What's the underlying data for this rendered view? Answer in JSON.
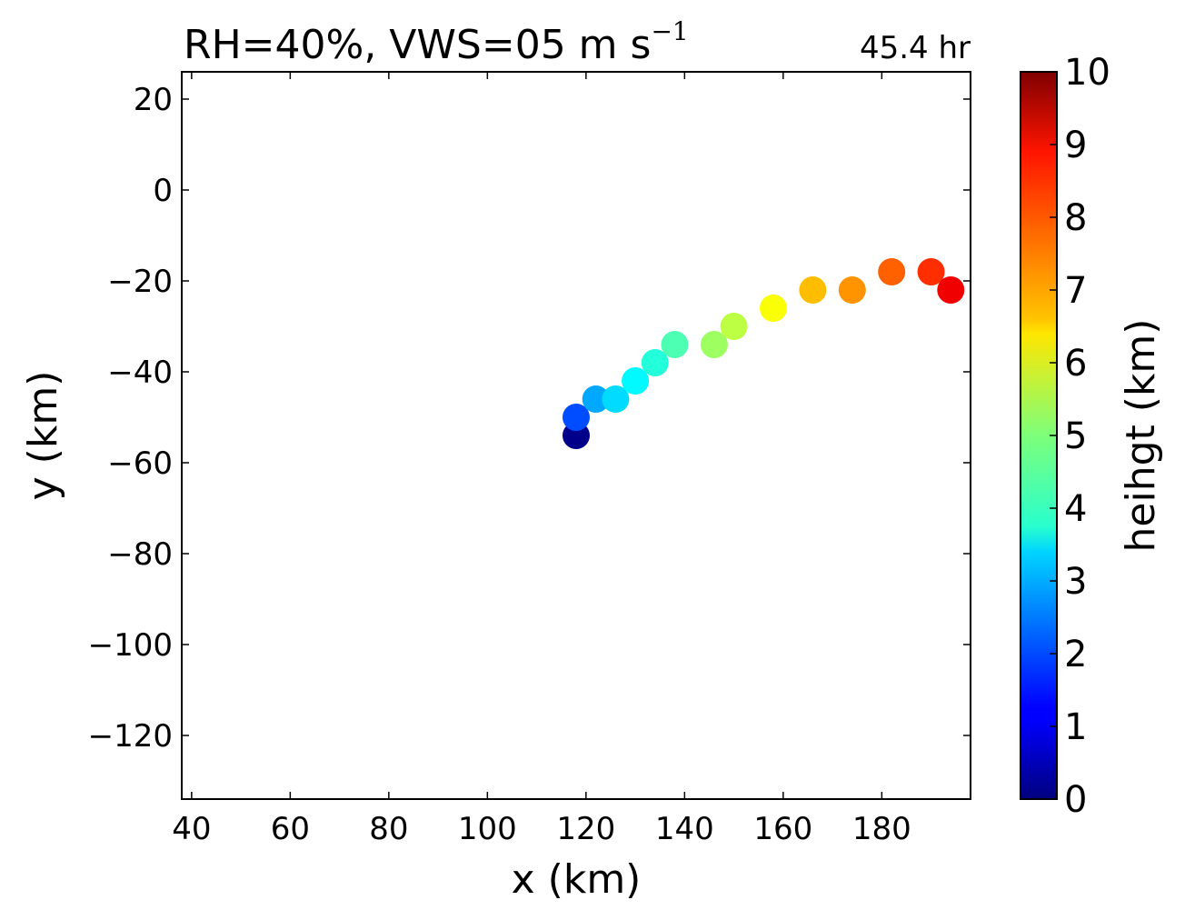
{
  "chart_data": {
    "type": "scatter",
    "title": "RH=40%, VWS=05 m s",
    "title_superscript": "−1",
    "annotation": "45.4 hr",
    "annotation_color": "#0000ff",
    "xlabel": "x (km)",
    "ylabel": "y (km)",
    "xlim": [
      38,
      198
    ],
    "ylim": [
      -134,
      26
    ],
    "xticks": [
      40,
      60,
      80,
      100,
      120,
      140,
      160,
      180
    ],
    "yticks": [
      20,
      0,
      -20,
      -40,
      -60,
      -80,
      -100,
      -120
    ],
    "colorbar": {
      "label": "heihgt (km)",
      "colormap": "jet",
      "range": [
        0,
        10
      ],
      "ticks": [
        0,
        1,
        2,
        3,
        4,
        5,
        6,
        7,
        8,
        9,
        10
      ]
    },
    "series": [
      {
        "points": [
          {
            "x": 118,
            "y": -54,
            "height": 0.1
          },
          {
            "x": 118,
            "y": -50,
            "height": 2.0
          },
          {
            "x": 122,
            "y": -46,
            "height": 2.9
          },
          {
            "x": 126,
            "y": -46,
            "height": 3.4
          },
          {
            "x": 130,
            "y": -42,
            "height": 3.7
          },
          {
            "x": 134,
            "y": -38,
            "height": 4.1
          },
          {
            "x": 138,
            "y": -34,
            "height": 4.5
          },
          {
            "x": 146,
            "y": -34,
            "height": 5.3
          },
          {
            "x": 150,
            "y": -30,
            "height": 5.6
          },
          {
            "x": 158,
            "y": -26,
            "height": 6.2
          },
          {
            "x": 166,
            "y": -22,
            "height": 6.9
          },
          {
            "x": 174,
            "y": -22,
            "height": 7.3
          },
          {
            "x": 182,
            "y": -18,
            "height": 7.8
          },
          {
            "x": 190,
            "y": -18,
            "height": 8.3
          },
          {
            "x": 194,
            "y": -22,
            "height": 8.9
          }
        ]
      }
    ]
  }
}
